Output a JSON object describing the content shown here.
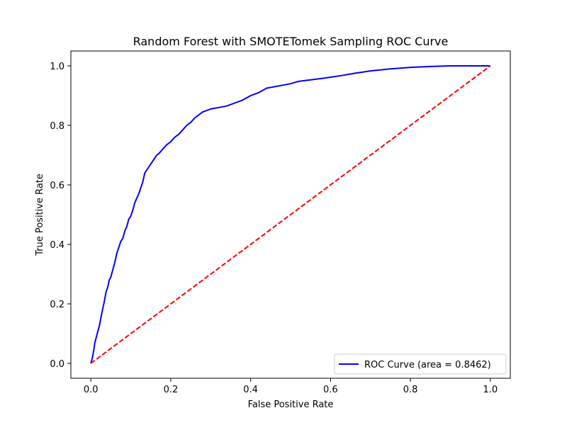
{
  "chart_data": {
    "type": "line",
    "title": "Random Forest with SMOTETomek Sampling ROC Curve",
    "xlabel": "False Positive Rate",
    "ylabel": "True Positive Rate",
    "xlim": [
      -0.05,
      1.05
    ],
    "ylim": [
      -0.05,
      1.05
    ],
    "xticks": [
      "0.0",
      "0.2",
      "0.4",
      "0.6",
      "0.8",
      "1.0"
    ],
    "yticks": [
      "0.0",
      "0.2",
      "0.4",
      "0.6",
      "0.8",
      "1.0"
    ],
    "grid": false,
    "legend_position": "lower-right",
    "series": [
      {
        "name": "ROC Curve (area = 0.8462)",
        "color": "#0000ff",
        "style": "solid",
        "x": [
          0.0,
          0.004,
          0.006,
          0.008,
          0.01,
          0.014,
          0.018,
          0.022,
          0.026,
          0.03,
          0.034,
          0.038,
          0.042,
          0.046,
          0.05,
          0.055,
          0.06,
          0.065,
          0.07,
          0.075,
          0.08,
          0.085,
          0.09,
          0.095,
          0.1,
          0.105,
          0.11,
          0.115,
          0.12,
          0.125,
          0.13,
          0.135,
          0.14,
          0.145,
          0.15,
          0.155,
          0.16,
          0.165,
          0.17,
          0.18,
          0.19,
          0.2,
          0.21,
          0.22,
          0.23,
          0.24,
          0.25,
          0.26,
          0.27,
          0.28,
          0.29,
          0.3,
          0.32,
          0.34,
          0.36,
          0.38,
          0.4,
          0.42,
          0.44,
          0.46,
          0.48,
          0.5,
          0.52,
          0.55,
          0.58,
          0.6,
          0.63,
          0.66,
          0.7,
          0.75,
          0.8,
          0.85,
          0.9,
          0.95,
          1.0
        ],
        "y": [
          0.0,
          0.02,
          0.035,
          0.05,
          0.07,
          0.09,
          0.11,
          0.13,
          0.16,
          0.185,
          0.21,
          0.24,
          0.255,
          0.28,
          0.29,
          0.315,
          0.34,
          0.37,
          0.39,
          0.41,
          0.42,
          0.445,
          0.46,
          0.485,
          0.495,
          0.515,
          0.54,
          0.555,
          0.57,
          0.59,
          0.61,
          0.64,
          0.65,
          0.66,
          0.67,
          0.68,
          0.69,
          0.7,
          0.705,
          0.72,
          0.735,
          0.745,
          0.76,
          0.77,
          0.785,
          0.8,
          0.81,
          0.825,
          0.835,
          0.845,
          0.85,
          0.855,
          0.86,
          0.865,
          0.875,
          0.885,
          0.9,
          0.91,
          0.925,
          0.93,
          0.935,
          0.94,
          0.948,
          0.953,
          0.958,
          0.962,
          0.968,
          0.975,
          0.983,
          0.99,
          0.995,
          0.998,
          1.0,
          1.0,
          1.0
        ]
      },
      {
        "name": "",
        "color": "#ff0000",
        "style": "dashed",
        "x": [
          0.0,
          1.0
        ],
        "y": [
          0.0,
          1.0
        ]
      }
    ]
  }
}
